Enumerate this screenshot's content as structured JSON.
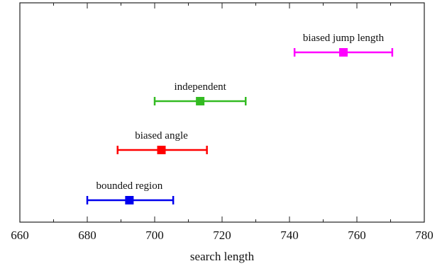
{
  "chart_data": {
    "type": "scatter",
    "title": "",
    "xlabel": "search length",
    "ylabel": "",
    "xlim": [
      660,
      780
    ],
    "xticks": [
      660,
      680,
      700,
      720,
      740,
      760,
      780
    ],
    "grid": false,
    "legend": "none",
    "series": [
      {
        "name": "bounded region",
        "x": 692.5,
        "err_low": 680,
        "err_high": 705.5,
        "color": "#0000ee"
      },
      {
        "name": "biased angle",
        "x": 702,
        "err_low": 689,
        "err_high": 715.5,
        "color": "#ff0000"
      },
      {
        "name": "independent",
        "x": 713.5,
        "err_low": 700,
        "err_high": 727,
        "color": "#33bb22"
      },
      {
        "name": "biased jump length",
        "x": 756,
        "err_low": 741.5,
        "err_high": 770.5,
        "color": "#ff00ff"
      }
    ]
  }
}
